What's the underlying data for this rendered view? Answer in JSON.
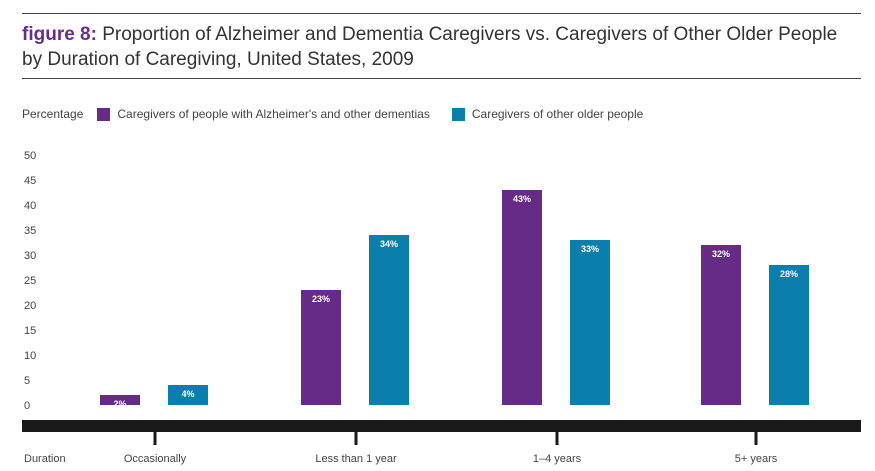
{
  "chart_data": {
    "type": "bar",
    "title_prefix": "figure 8:",
    "title_line1": "Proportion of Alzheimer and Dementia Caregivers vs. Caregivers of Other Older People",
    "title_line2": "by Duration of Caregiving, United States, 2009",
    "ylabel": "Percentage",
    "xlabel": "Duration",
    "ylim": [
      0,
      50
    ],
    "yticks": [
      0,
      5,
      10,
      15,
      20,
      25,
      30,
      35,
      40,
      45,
      50
    ],
    "categories": [
      "Occasionally",
      "Less than 1 year",
      "1–4 years",
      "5+ years"
    ],
    "series": [
      {
        "name": "Caregivers of people with Alzheimer's and other dementias",
        "color": "#652b86",
        "values": [
          2,
          23,
          43,
          32
        ],
        "labels": [
          "2%",
          "23%",
          "43%",
          "32%"
        ]
      },
      {
        "name": "Caregivers of other older people",
        "color": "#0a7fab",
        "values": [
          4,
          34,
          33,
          28
        ],
        "labels": [
          "4%",
          "34%",
          "33%",
          "28%"
        ]
      }
    ],
    "grid": false,
    "legend": "top-left"
  }
}
